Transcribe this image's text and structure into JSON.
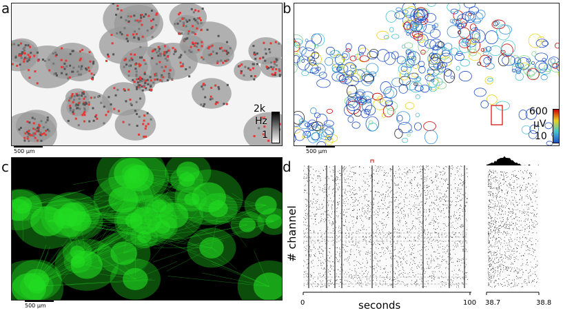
{
  "panels": {
    "a": {
      "letter": "a",
      "scale": "500 μm",
      "cb_top": "2k",
      "cb_unit": "Hz",
      "cb_bottom": "1"
    },
    "b": {
      "letter": "b",
      "scale": "500 μm",
      "cb_top": "600",
      "cb_unit": "μV",
      "cb_bottom": "10"
    },
    "c": {
      "letter": "c",
      "scale": "500 μm"
    },
    "d": {
      "letter": "d",
      "ylabel": "# channel",
      "xlabel": "seconds",
      "x0": "0",
      "x1": "100",
      "zoom0": "38.7",
      "zoom1": "38.8"
    }
  },
  "colors": {
    "frequency_hot": "#e53935",
    "fluorescence": "#22dd22",
    "raster": "#111111"
  }
}
